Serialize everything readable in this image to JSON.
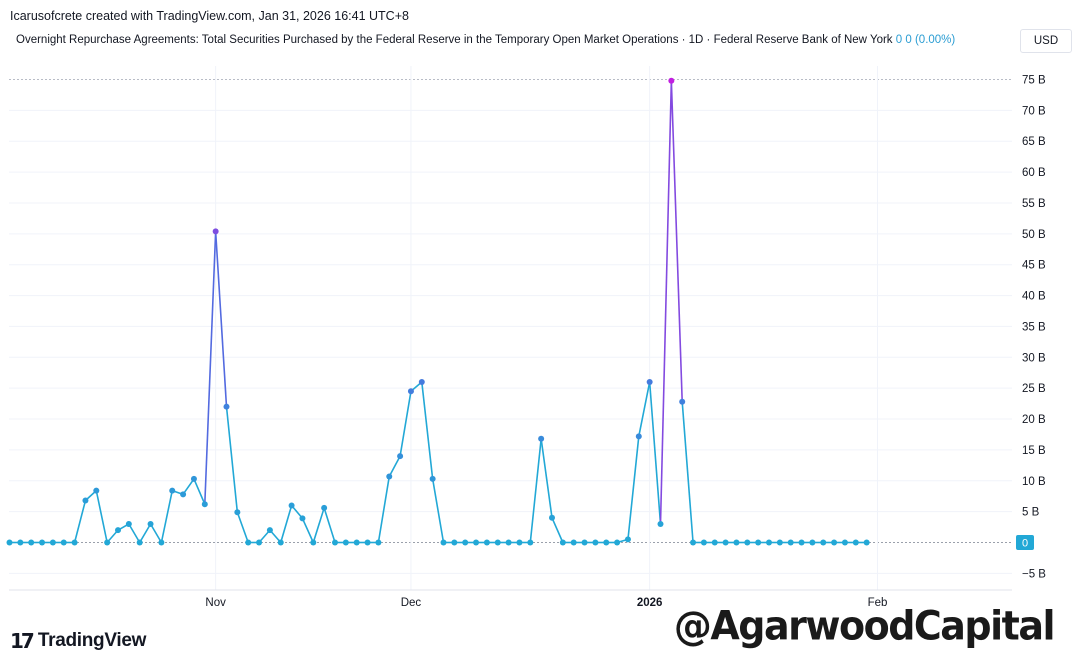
{
  "header": {
    "credit": "Icarusofcrete created with TradingView.com, Jan 31, 2026 16:41 UTC+8",
    "legend_title": "Overnight Repurchase Agreements: Total Securities Purchased by the Federal Reserve in the Temporary Open Market Operations · 1D · Federal Reserve Bank of New York",
    "legend_value": "0",
    "legend_change": "0 (0.00%)",
    "currency": "USD",
    "last_value_tag": "0"
  },
  "branding": {
    "logo_mark": "17",
    "logo_text": "TradingView",
    "watermark": "@AgarwoodCapital"
  },
  "chart_data": {
    "type": "line",
    "title": "Overnight Repurchase Agreements: Total Securities Purchased by the Federal Reserve in the Temporary Open Market Operations",
    "xlabel": "",
    "ylabel": "",
    "ylim": [
      -5,
      75
    ],
    "grid": true,
    "y_ticks": [
      "75 B",
      "70 B",
      "65 B",
      "60 B",
      "55 B",
      "50 B",
      "45 B",
      "40 B",
      "35 B",
      "30 B",
      "25 B",
      "20 B",
      "15 B",
      "10 B",
      "5 B",
      "−5 B"
    ],
    "y_tick_values": [
      75,
      70,
      65,
      60,
      55,
      50,
      45,
      40,
      35,
      30,
      25,
      20,
      15,
      10,
      5,
      -5
    ],
    "x_ticks": [
      {
        "label": "Nov",
        "index": 19,
        "bold": false
      },
      {
        "label": "Dec",
        "index": 37,
        "bold": false
      },
      {
        "label": "2026",
        "index": 59,
        "bold": true
      },
      {
        "label": "Feb",
        "index": 80,
        "bold": false
      }
    ],
    "x_index_range": [
      0,
      99
    ],
    "series": [
      {
        "unit": "B USD",
        "values": [
          0,
          0,
          0,
          0,
          0,
          0,
          0,
          6.8,
          8.4,
          0,
          2.0,
          3.0,
          0,
          3.0,
          0,
          8.4,
          7.8,
          10.3,
          6.2,
          50.4,
          22.0,
          4.9,
          0,
          0,
          2.0,
          0,
          6.0,
          3.9,
          0,
          5.6,
          0,
          0,
          0,
          0,
          0,
          10.7,
          14.0,
          24.5,
          26.0,
          10.3,
          0,
          0,
          0,
          0,
          0,
          0,
          0,
          0,
          0,
          16.8,
          4.0,
          0,
          0,
          0,
          0,
          0,
          0,
          0.5,
          17.2,
          26.0,
          3.0,
          74.8,
          22.8,
          0,
          0,
          0,
          0,
          0,
          0,
          0,
          0,
          0,
          0,
          0,
          0,
          0,
          0,
          0,
          0,
          0
        ]
      }
    ]
  }
}
